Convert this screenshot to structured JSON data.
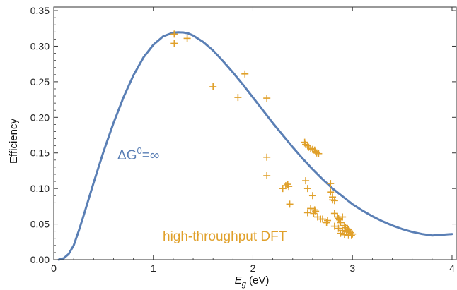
{
  "chart_data": {
    "type": "line",
    "xlabel_main": "E",
    "xlabel_sub": "g",
    "xlabel_unit": " (eV)",
    "ylabel": "Efficiency",
    "xlim": [
      0,
      4.05
    ],
    "ylim": [
      0,
      0.355
    ],
    "xticks": [
      0,
      1,
      2,
      3,
      4
    ],
    "xtick_labels": [
      "0",
      "1",
      "2",
      "3",
      "4"
    ],
    "yticks": [
      0,
      0.05,
      0.1,
      0.15,
      0.2,
      0.25,
      0.3,
      0.35
    ],
    "ytick_labels": [
      "0.00",
      "0.05",
      "0.10",
      "0.15",
      "0.20",
      "0.25",
      "0.30",
      "0.35"
    ],
    "grid": false,
    "colors": {
      "curve": "#5a7fb5",
      "points": "#e0a02a",
      "axis": "#333333"
    },
    "series": [
      {
        "label_parts": {
          "delta": "ΔG",
          "sup": "0",
          "rest": "=∞"
        },
        "x": [
          0.05,
          0.1,
          0.15,
          0.2,
          0.25,
          0.3,
          0.35,
          0.4,
          0.5,
          0.6,
          0.7,
          0.8,
          0.9,
          1.0,
          1.1,
          1.2,
          1.25,
          1.3,
          1.35,
          1.4,
          1.5,
          1.6,
          1.7,
          1.8,
          1.9,
          2.0,
          2.1,
          2.2,
          2.3,
          2.4,
          2.5,
          2.6,
          2.7,
          2.8,
          2.9,
          3.0,
          3.1,
          3.2,
          3.3,
          3.4,
          3.5,
          3.6,
          3.7,
          3.8,
          3.9,
          4.0
        ],
        "y": [
          0.0,
          0.002,
          0.008,
          0.02,
          0.04,
          0.062,
          0.085,
          0.108,
          0.152,
          0.192,
          0.228,
          0.259,
          0.284,
          0.302,
          0.314,
          0.319,
          0.3195,
          0.3193,
          0.318,
          0.315,
          0.306,
          0.294,
          0.279,
          0.263,
          0.246,
          0.228,
          0.21,
          0.192,
          0.175,
          0.158,
          0.142,
          0.127,
          0.113,
          0.1,
          0.089,
          0.078,
          0.069,
          0.061,
          0.054,
          0.048,
          0.043,
          0.039,
          0.036,
          0.034,
          0.035,
          0.036
        ]
      },
      {
        "label": "high-throughput DFT",
        "marker": "+",
        "x": [
          1.21,
          1.21,
          1.34,
          1.6,
          1.85,
          1.92,
          2.14,
          2.14,
          2.14,
          2.3,
          2.33,
          2.35,
          2.36,
          2.37,
          2.52,
          2.53,
          2.55,
          2.56,
          2.58,
          2.6,
          2.62,
          2.63,
          2.64,
          2.66,
          2.53,
          2.55,
          2.58,
          2.6,
          2.62,
          2.63,
          2.65,
          2.7,
          2.75,
          2.78,
          2.78,
          2.8,
          2.8,
          2.82,
          2.82,
          2.85,
          2.86,
          2.87,
          2.88,
          2.9,
          2.92,
          2.93,
          2.95,
          2.96,
          2.97,
          2.98,
          3.0,
          2.55,
          2.61,
          2.68,
          2.74,
          2.82,
          2.86,
          2.9,
          2.94,
          2.88,
          2.92,
          2.96,
          2.99
        ],
        "y": [
          0.317,
          0.304,
          0.311,
          0.243,
          0.228,
          0.261,
          0.227,
          0.144,
          0.118,
          0.1,
          0.104,
          0.106,
          0.103,
          0.078,
          0.165,
          0.162,
          0.16,
          0.158,
          0.156,
          0.155,
          0.154,
          0.152,
          0.15,
          0.149,
          0.111,
          0.1,
          0.072,
          0.09,
          0.07,
          0.068,
          0.06,
          0.057,
          0.055,
          0.107,
          0.095,
          0.088,
          0.084,
          0.083,
          0.065,
          0.06,
          0.058,
          0.056,
          0.052,
          0.06,
          0.048,
          0.045,
          0.043,
          0.042,
          0.04,
          0.038,
          0.036,
          0.066,
          0.065,
          0.057,
          0.052,
          0.047,
          0.044,
          0.041,
          0.039,
          0.037,
          0.035,
          0.034,
          0.034
        ]
      }
    ]
  }
}
